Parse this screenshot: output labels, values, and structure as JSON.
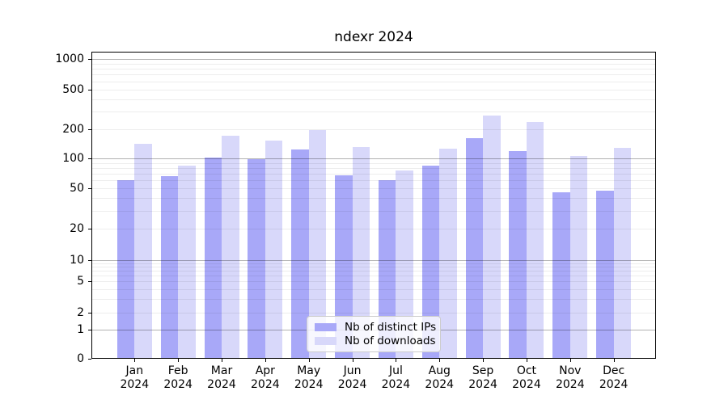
{
  "figure": {
    "title": "ndexr 2024"
  },
  "chart_data": {
    "type": "bar",
    "title": "ndexr 2024",
    "categories": [
      "Jan 2024",
      "Feb 2024",
      "Mar 2024",
      "Apr 2024",
      "May 2024",
      "Jun 2024",
      "Jul 2024",
      "Aug 2024",
      "Sep 2024",
      "Oct 2024",
      "Nov 2024",
      "Dec 2024"
    ],
    "series": [
      {
        "name": "Nb of distinct IPs",
        "color": "#a8a8f8",
        "values": [
          61,
          67,
          101,
          99,
          124,
          68,
          61,
          85,
          163,
          118,
          46,
          48
        ]
      },
      {
        "name": "Nb of downloads",
        "color": "#d8d8fa",
        "values": [
          141,
          84,
          170,
          153,
          195,
          131,
          76,
          126,
          272,
          238,
          106,
          129
        ]
      }
    ],
    "yscale": "symlog",
    "ylim": [
      0,
      1200
    ],
    "yticks": [
      0,
      1,
      2,
      5,
      10,
      20,
      50,
      100,
      200,
      500,
      1000
    ],
    "minor_grid_values": [
      2,
      3,
      4,
      5,
      6,
      7,
      8,
      9,
      20,
      30,
      40,
      50,
      60,
      70,
      80,
      90,
      200,
      300,
      400,
      500,
      600,
      700,
      800,
      900
    ],
    "major_grid_values": [
      1,
      10,
      100,
      1000
    ],
    "grid": "both",
    "legend_position": "lower center"
  },
  "x_axis": {
    "months": [
      "Jan",
      "Feb",
      "Mar",
      "Apr",
      "May",
      "Jun",
      "Jul",
      "Aug",
      "Sep",
      "Oct",
      "Nov",
      "Dec"
    ],
    "year": "2024"
  },
  "y_axis": {
    "tick_labels": [
      "0",
      "1",
      "2",
      "5",
      "10",
      "20",
      "50",
      "100",
      "200",
      "500",
      "1000"
    ]
  },
  "legend": {
    "items": [
      {
        "label": "Nb of distinct IPs",
        "color": "#a8a8f8"
      },
      {
        "label": "Nb of downloads",
        "color": "#d8d8fa"
      }
    ]
  },
  "colors": {
    "bar_ips": "#a8a8f8",
    "bar_downloads": "#d8d8fa",
    "major_grid": "rgba(0,0,0,0.30)",
    "minor_grid": "rgba(0,0,0,0.07)",
    "spine": "#000000"
  }
}
